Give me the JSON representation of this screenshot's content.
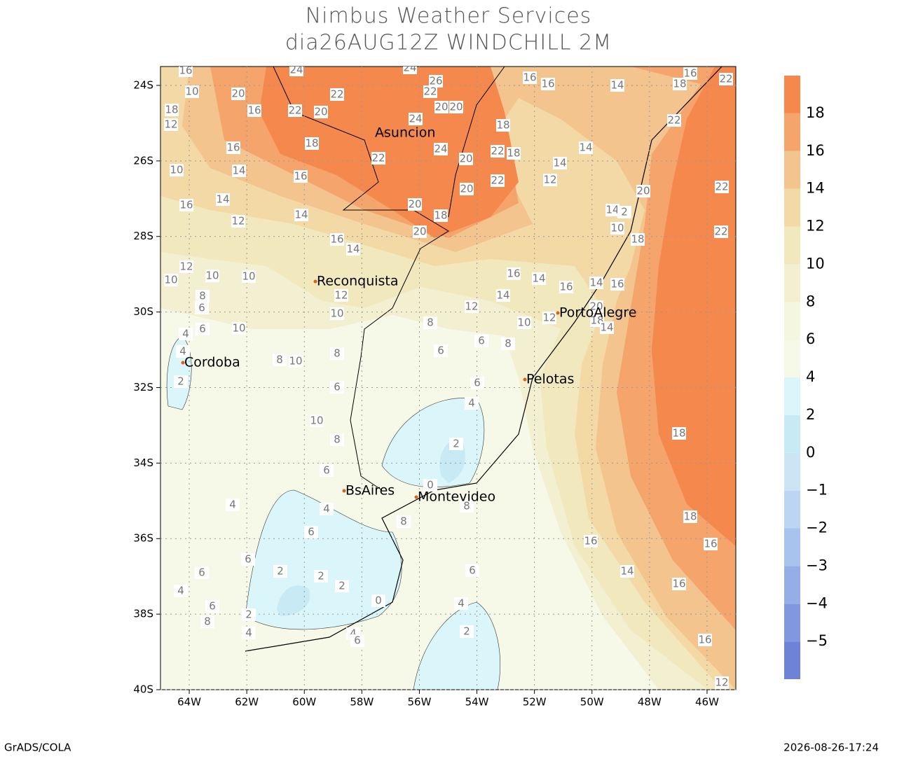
{
  "header": {
    "title": "Nimbus Weather Services",
    "subtitle": "dia26AUG12Z WINDCHILL 2M"
  },
  "map": {
    "lon_range": [
      -65,
      -45
    ],
    "lat_range": [
      -40,
      -23.5
    ],
    "lat_ticks": [
      {
        "value": -24,
        "label": "24S"
      },
      {
        "value": -26,
        "label": "26S"
      },
      {
        "value": -28,
        "label": "28S"
      },
      {
        "value": -30,
        "label": "30S"
      },
      {
        "value": -32,
        "label": "32S"
      },
      {
        "value": -34,
        "label": "34S"
      },
      {
        "value": -36,
        "label": "36S"
      },
      {
        "value": -38,
        "label": "38S"
      },
      {
        "value": -40,
        "label": "40S"
      }
    ],
    "lon_ticks": [
      {
        "value": -64,
        "label": "64W"
      },
      {
        "value": -62,
        "label": "62W"
      },
      {
        "value": -60,
        "label": "60W"
      },
      {
        "value": -58,
        "label": "58W"
      },
      {
        "value": -56,
        "label": "56W"
      },
      {
        "value": -54,
        "label": "54W"
      },
      {
        "value": -52,
        "label": "52W"
      },
      {
        "value": -50,
        "label": "50W"
      },
      {
        "value": -48,
        "label": "48W"
      },
      {
        "value": -46,
        "label": "46W"
      }
    ],
    "grid": true,
    "cities": [
      "Asuncion",
      "Reconquista",
      "PortoAlegre",
      "Cordoba",
      "Pelotas",
      "BsAires",
      "Montevideo"
    ],
    "contour_labels": [
      24,
      24,
      26,
      22,
      20,
      22,
      22,
      20,
      16,
      20,
      20,
      24,
      18,
      18,
      16,
      24,
      20,
      22,
      22,
      18,
      14,
      16,
      20,
      22,
      20,
      18,
      20,
      14,
      12,
      16,
      14,
      16,
      14,
      12,
      10,
      10,
      10,
      12,
      10,
      12,
      16,
      14,
      14,
      16,
      14,
      16,
      12,
      10,
      8,
      8,
      6,
      6,
      10,
      8,
      10,
      8,
      8,
      6,
      6,
      4,
      4,
      2,
      6,
      4,
      6,
      10,
      8,
      2,
      6,
      0,
      8,
      4,
      8,
      4,
      6,
      6,
      6,
      2,
      2,
      2,
      4,
      0,
      6,
      2,
      8,
      4,
      4,
      6,
      6,
      4,
      2,
      16,
      16,
      14,
      14,
      14,
      12,
      14,
      2,
      10,
      18,
      16,
      18,
      22,
      22,
      20,
      22,
      22,
      20,
      18,
      14,
      18,
      18,
      16,
      16,
      14,
      16,
      16,
      12,
      10,
      10,
      16,
      18,
      12
    ]
  },
  "colorbar": {
    "colors": [
      "#6e82d8",
      "#8198e0",
      "#95aee8",
      "#a9c3ef",
      "#bcd5f3",
      "#cce5f5",
      "#c8eaf5",
      "#daf6fa",
      "#f7f9e8",
      "#f4f6e0",
      "#f3f0d2",
      "#f1e8be",
      "#f3d9a6",
      "#f4c48e",
      "#f5a46b",
      "#f5884c"
    ],
    "ticks": [
      {
        "value": -5,
        "label": "−5"
      },
      {
        "value": -4,
        "label": "−4"
      },
      {
        "value": -3,
        "label": "−3"
      },
      {
        "value": -2,
        "label": "−2"
      },
      {
        "value": -1,
        "label": "−1"
      },
      0,
      2,
      4,
      6,
      8,
      10,
      12,
      14,
      16,
      18
    ]
  },
  "footer": {
    "left": "GrADS/COLA",
    "right": "2026-08-26-17:24"
  }
}
